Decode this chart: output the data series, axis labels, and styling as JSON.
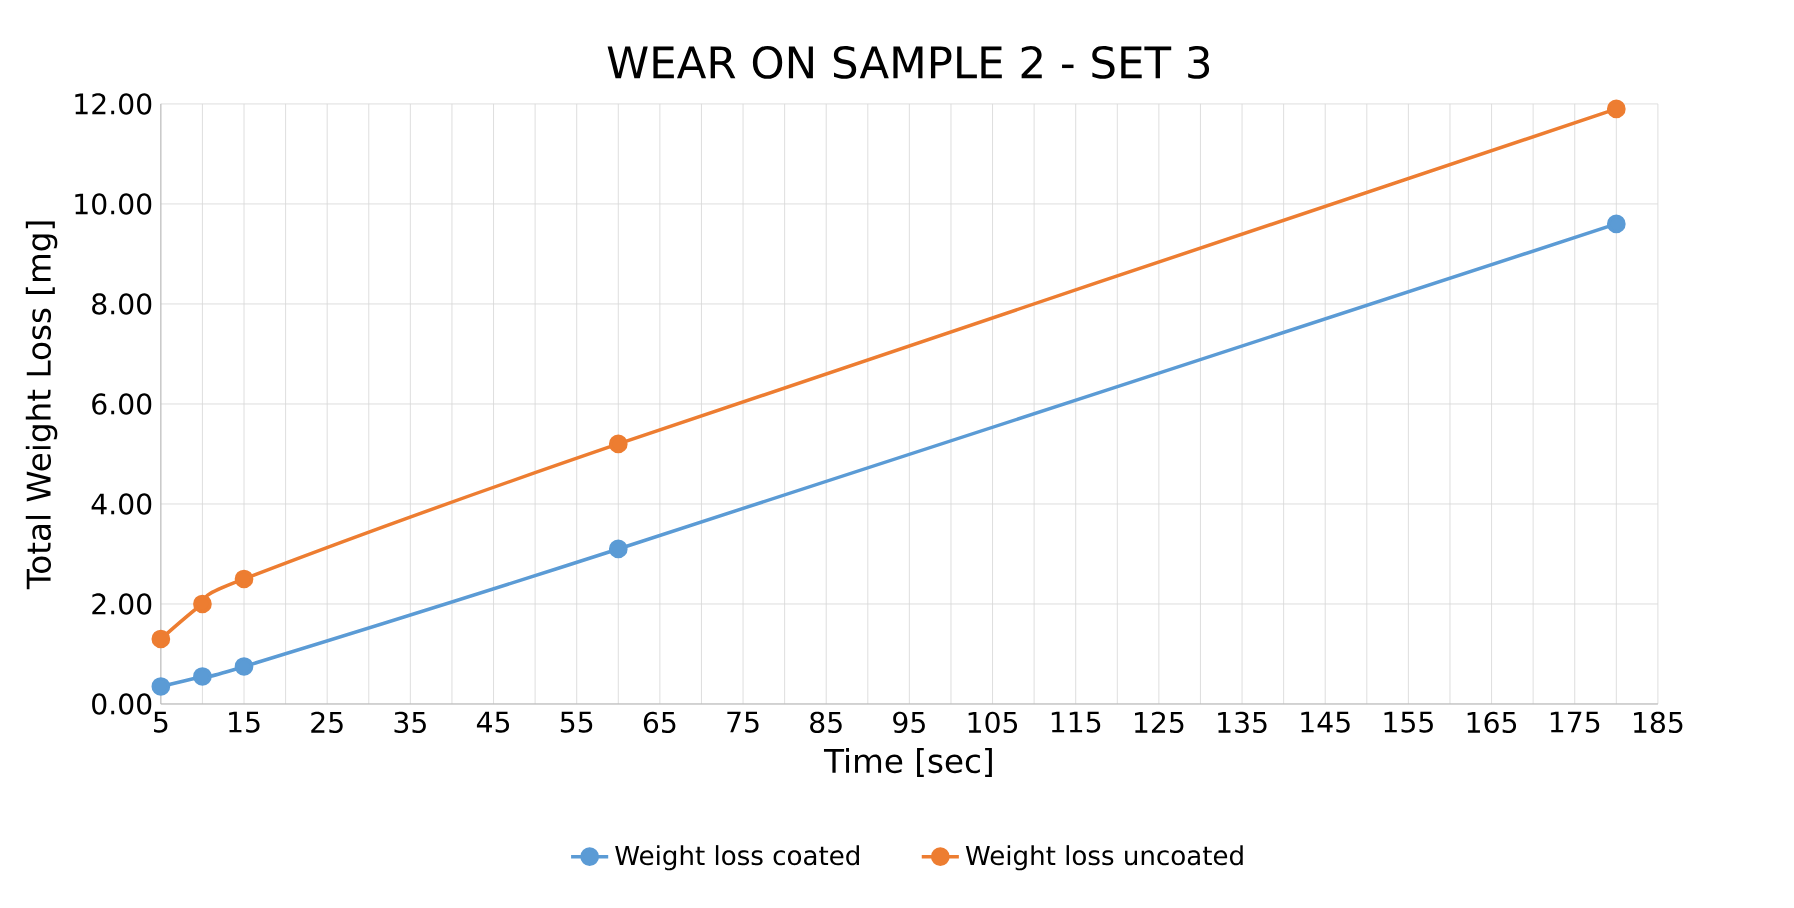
{
  "chart_data": {
    "type": "line",
    "title": "WEAR ON SAMPLE 2 - SET  3",
    "xlabel": "Time [sec]",
    "ylabel": "Total Weight Loss [mg]",
    "x": [
      5,
      10,
      15,
      60,
      180
    ],
    "series": [
      {
        "name": "Weight loss coated",
        "color": "#5b9bd5",
        "values": [
          0.35,
          0.55,
          0.75,
          3.1,
          9.6
        ]
      },
      {
        "name": "Weight loss uncoated",
        "color": "#ed7d31",
        "values": [
          1.3,
          2.0,
          2.5,
          5.2,
          11.9
        ]
      }
    ],
    "xlim": [
      5,
      185
    ],
    "xticks": [
      5,
      {
        "value": 10,
        "label": null
      },
      15,
      {
        "value": 20,
        "label": null
      },
      25,
      {
        "value": 30,
        "label": null
      },
      35,
      {
        "value": 40,
        "label": null
      },
      45,
      {
        "value": 50,
        "label": null
      },
      55,
      {
        "value": 60,
        "label": null
      },
      65,
      {
        "value": 70,
        "label": null
      },
      75,
      {
        "value": 80,
        "label": null
      },
      85,
      {
        "value": 90,
        "label": null
      },
      95,
      {
        "value": 100,
        "label": null
      },
      105,
      {
        "value": 110,
        "label": null
      },
      115,
      {
        "value": 120,
        "label": null
      },
      125,
      {
        "value": 130,
        "label": null
      },
      135,
      {
        "value": 140,
        "label": null
      },
      145,
      {
        "value": 150,
        "label": null
      },
      155,
      {
        "value": 160,
        "label": null
      },
      165,
      {
        "value": 170,
        "label": null
      },
      175,
      {
        "value": 180,
        "label": null
      },
      185
    ],
    "ylim": [
      0,
      12
    ],
    "yticks": [
      {
        "value": 0,
        "label": "0.00"
      },
      {
        "value": 2,
        "label": "2.00"
      },
      {
        "value": 4,
        "label": "4.00"
      },
      {
        "value": 6,
        "label": "6.00"
      },
      {
        "value": 8,
        "label": "8.00"
      },
      {
        "value": 10,
        "label": "10.00"
      },
      {
        "value": 12,
        "label": "12.00"
      }
    ],
    "grid": true,
    "legend": "bottom",
    "marker": "circle",
    "line_style": "solid"
  }
}
